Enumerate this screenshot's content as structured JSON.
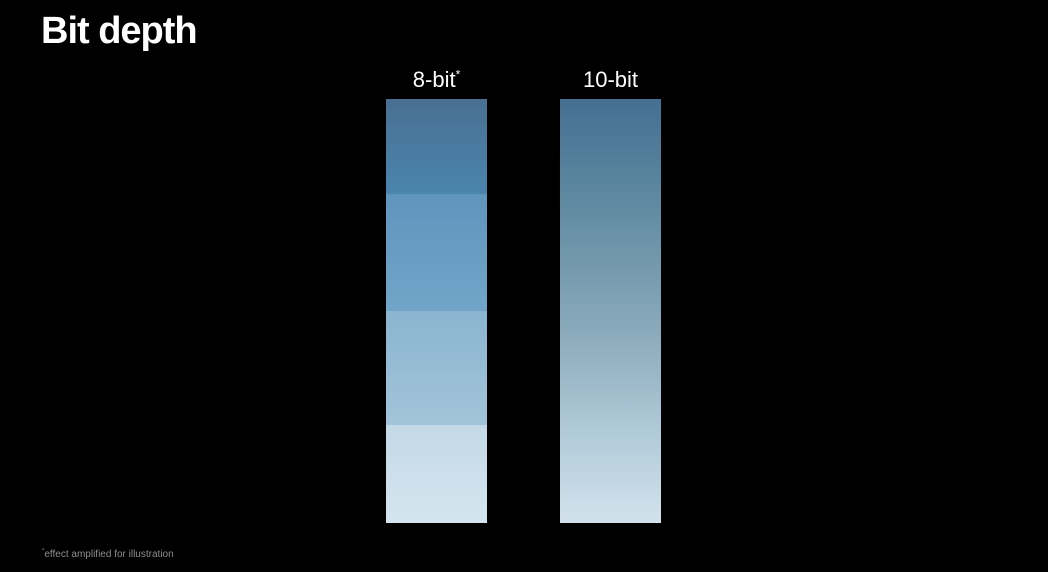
{
  "slide": {
    "title": "Bit depth"
  },
  "columns": {
    "eight_bit": {
      "label": "8-bit",
      "mark": "*"
    },
    "ten_bit": {
      "label": "10-bit"
    }
  },
  "footnote": {
    "mark": "*",
    "text": "effect amplified for illustration"
  },
  "colors": {
    "background": "#000000",
    "gradient_dark": "#456f92",
    "gradient_light": "#d2e2ec",
    "footnote_text": "#8e8e93"
  }
}
